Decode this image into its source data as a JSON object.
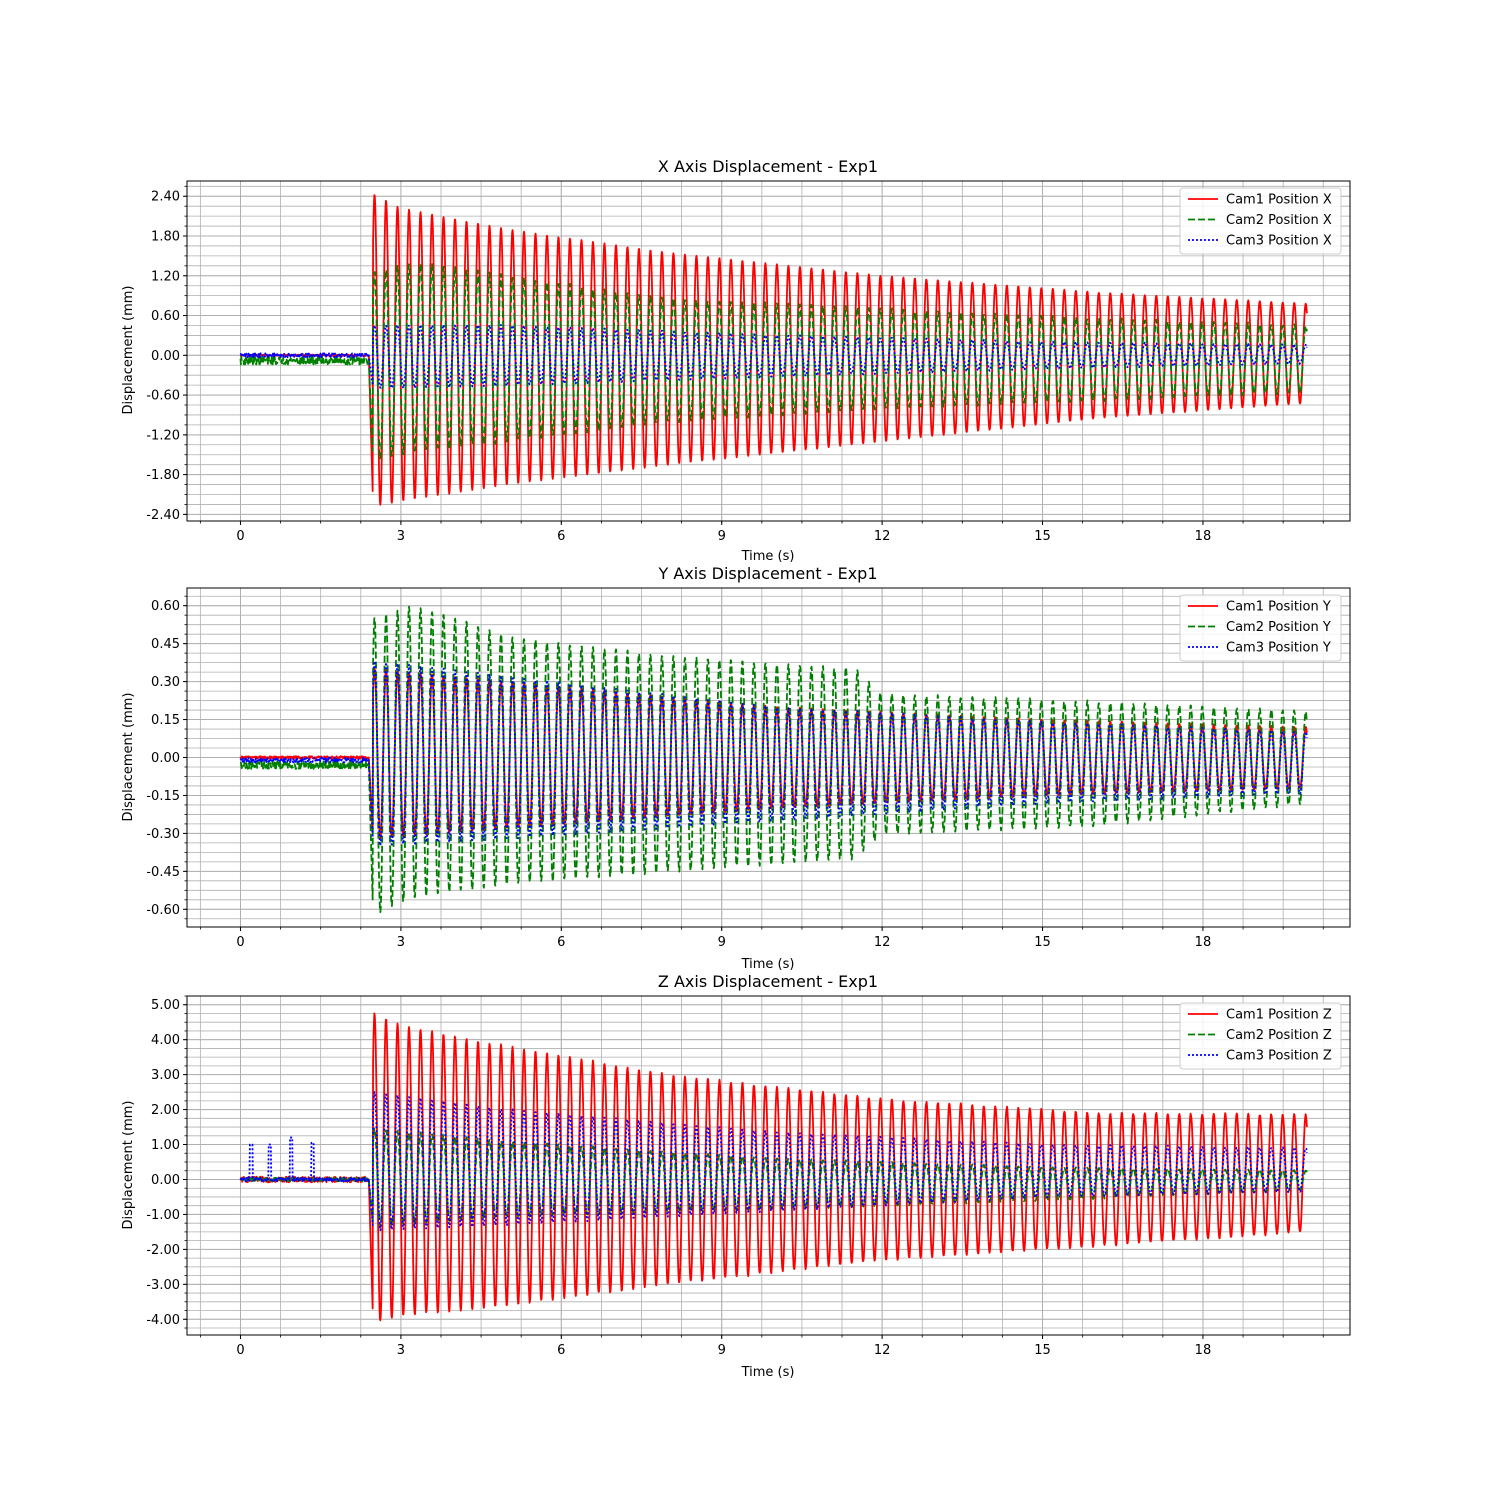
{
  "chart_data": [
    {
      "type": "line",
      "title": "X Axis Displacement - Exp1",
      "xlabel": "Time (s)",
      "ylabel": "Displacement (mm)",
      "xlim": [
        -1.0,
        20.75
      ],
      "ylim": [
        -2.5,
        2.63
      ],
      "xticks": [
        0,
        3,
        6,
        9,
        12,
        15,
        18
      ],
      "xtick_labels": [
        "0",
        "3",
        "6",
        "9",
        "12",
        "15",
        "18"
      ],
      "yticks": [
        -2.4,
        -1.8,
        -1.2,
        -0.6,
        0.0,
        0.6,
        1.2,
        1.8,
        2.4
      ],
      "ytick_labels": [
        "-2.40",
        "-1.80",
        "-1.20",
        "-0.60",
        "0.00",
        "0.60",
        "1.20",
        "1.80",
        "2.40"
      ],
      "grid": "major and minor",
      "legend_position": "top-right",
      "series": [
        {
          "name": "Cam1 Position X",
          "color": "#ff0000",
          "style": "solid",
          "onset": 2.4,
          "baseline": 0.0,
          "noise": 0.01,
          "period": 0.215,
          "upper": [
            [
              2.45,
              2.45
            ],
            [
              3.0,
              2.22
            ],
            [
              5.0,
              1.9
            ],
            [
              8.0,
              1.55
            ],
            [
              12.0,
              1.2
            ],
            [
              16.0,
              0.95
            ],
            [
              19.9,
              0.78
            ]
          ],
          "lower": [
            [
              2.45,
              -2.28
            ],
            [
              3.0,
              -2.2
            ],
            [
              5.0,
              -1.95
            ],
            [
              8.0,
              -1.65
            ],
            [
              12.0,
              -1.3
            ],
            [
              16.0,
              -0.95
            ],
            [
              19.9,
              -0.72
            ]
          ]
        },
        {
          "name": "Cam2 Position X",
          "color": "#008000",
          "style": "dashed",
          "onset": 2.4,
          "baseline": -0.08,
          "noise": 0.06,
          "period": 0.215,
          "upper": [
            [
              2.5,
              1.25
            ],
            [
              3.3,
              1.4
            ],
            [
              5.0,
              1.2
            ],
            [
              8.0,
              0.85
            ],
            [
              12.0,
              0.7
            ],
            [
              16.0,
              0.55
            ],
            [
              19.9,
              0.45
            ]
          ],
          "lower": [
            [
              2.5,
              -1.6
            ],
            [
              3.3,
              -1.45
            ],
            [
              5.0,
              -1.3
            ],
            [
              8.0,
              -1.0
            ],
            [
              12.0,
              -0.8
            ],
            [
              16.0,
              -0.68
            ],
            [
              19.9,
              -0.55
            ]
          ]
        },
        {
          "name": "Cam3 Position X",
          "color": "#0000ff",
          "style": "dotted",
          "onset": 2.4,
          "baseline": 0.0,
          "noise": 0.03,
          "period": 0.215,
          "upper": [
            [
              2.5,
              0.45
            ],
            [
              5.0,
              0.45
            ],
            [
              10.0,
              0.3
            ],
            [
              15.0,
              0.2
            ],
            [
              19.9,
              0.15
            ]
          ],
          "lower": [
            [
              2.5,
              -0.5
            ],
            [
              5.0,
              -0.45
            ],
            [
              10.0,
              -0.32
            ],
            [
              15.0,
              -0.2
            ],
            [
              19.9,
              -0.12
            ]
          ]
        }
      ]
    },
    {
      "type": "line",
      "title": "Y Axis Displacement - Exp1",
      "xlabel": "Time (s)",
      "ylabel": "Displacement (mm)",
      "xlim": [
        -1.0,
        20.75
      ],
      "ylim": [
        -0.67,
        0.67
      ],
      "xticks": [
        0,
        3,
        6,
        9,
        12,
        15,
        18
      ],
      "xtick_labels": [
        "0",
        "3",
        "6",
        "9",
        "12",
        "15",
        "18"
      ],
      "yticks": [
        -0.6,
        -0.45,
        -0.3,
        -0.15,
        0.0,
        0.15,
        0.3,
        0.45,
        0.6
      ],
      "ytick_labels": [
        "-0.60",
        "-0.45",
        "-0.30",
        "-0.15",
        "0.00",
        "0.15",
        "0.30",
        "0.45",
        "0.60"
      ],
      "grid": "major and minor",
      "legend_position": "top-right",
      "series": [
        {
          "name": "Cam1 Position Y",
          "color": "#ff0000",
          "style": "solid",
          "onset": 2.4,
          "baseline": 0.0,
          "noise": 0.005,
          "period": 0.215,
          "upper": [
            [
              2.5,
              0.35
            ],
            [
              5.0,
              0.3
            ],
            [
              10.0,
              0.2
            ],
            [
              15.0,
              0.15
            ],
            [
              19.9,
              0.12
            ]
          ],
          "lower": [
            [
              2.5,
              -0.32
            ],
            [
              5.0,
              -0.28
            ],
            [
              10.0,
              -0.2
            ],
            [
              15.0,
              -0.15
            ],
            [
              19.9,
              -0.12
            ]
          ]
        },
        {
          "name": "Cam2 Position Y",
          "color": "#008000",
          "style": "dashed",
          "onset": 2.4,
          "baseline": -0.03,
          "noise": 0.015,
          "period": 0.215,
          "upper": [
            [
              2.5,
              0.55
            ],
            [
              3.3,
              0.6
            ],
            [
              5.0,
              0.48
            ],
            [
              8.0,
              0.4
            ],
            [
              11.5,
              0.35
            ],
            [
              12.0,
              0.25
            ],
            [
              16.0,
              0.22
            ],
            [
              19.9,
              0.18
            ]
          ],
          "lower": [
            [
              2.5,
              -0.62
            ],
            [
              3.3,
              -0.55
            ],
            [
              5.0,
              -0.5
            ],
            [
              8.0,
              -0.45
            ],
            [
              11.5,
              -0.4
            ],
            [
              12.0,
              -0.3
            ],
            [
              16.0,
              -0.27
            ],
            [
              19.9,
              -0.18
            ]
          ]
        },
        {
          "name": "Cam3 Position Y",
          "color": "#0000ff",
          "style": "dotted",
          "onset": 2.4,
          "baseline": -0.01,
          "noise": 0.01,
          "period": 0.215,
          "upper": [
            [
              2.5,
              0.38
            ],
            [
              5.0,
              0.32
            ],
            [
              10.0,
              0.2
            ],
            [
              15.0,
              0.14
            ],
            [
              19.9,
              0.1
            ]
          ],
          "lower": [
            [
              2.5,
              -0.35
            ],
            [
              5.0,
              -0.32
            ],
            [
              10.0,
              -0.25
            ],
            [
              15.0,
              -0.18
            ],
            [
              19.9,
              -0.14
            ]
          ]
        }
      ]
    },
    {
      "type": "line",
      "title": "Z Axis Displacement - Exp1",
      "xlabel": "Time (s)",
      "ylabel": "Displacement (mm)",
      "xlim": [
        -1.0,
        20.75
      ],
      "ylim": [
        -4.45,
        5.25
      ],
      "xticks": [
        0,
        3,
        6,
        9,
        12,
        15,
        18
      ],
      "xtick_labels": [
        "0",
        "3",
        "6",
        "9",
        "12",
        "15",
        "18"
      ],
      "yticks": [
        -4,
        -3,
        -2,
        -1,
        0,
        1,
        2,
        3,
        4,
        5
      ],
      "ytick_labels": [
        "-4.00",
        "-3.00",
        "-2.00",
        "-1.00",
        "0.00",
        "1.00",
        "2.00",
        "3.00",
        "4.00",
        "5.00"
      ],
      "grid": "major and minor",
      "legend_position": "top-right",
      "series": [
        {
          "name": "Cam1 Position Z",
          "color": "#ff0000",
          "style": "solid",
          "onset": 2.4,
          "baseline": 0.0,
          "noise": 0.08,
          "period": 0.215,
          "upper": [
            [
              2.5,
              4.75
            ],
            [
              3.0,
              4.4
            ],
            [
              5.0,
              3.8
            ],
            [
              8.0,
              3.0
            ],
            [
              12.0,
              2.3
            ],
            [
              16.0,
              1.9
            ],
            [
              19.9,
              1.85
            ]
          ],
          "lower": [
            [
              2.5,
              -4.1
            ],
            [
              3.0,
              -3.9
            ],
            [
              5.0,
              -3.6
            ],
            [
              8.0,
              -3.0
            ],
            [
              12.0,
              -2.3
            ],
            [
              16.0,
              -1.9
            ],
            [
              19.9,
              -1.5
            ]
          ]
        },
        {
          "name": "Cam2 Position Z",
          "color": "#008000",
          "style": "dashed",
          "onset": 2.4,
          "baseline": 0.0,
          "noise": 0.05,
          "period": 0.215,
          "upper": [
            [
              2.5,
              1.45
            ],
            [
              5.0,
              1.1
            ],
            [
              10.0,
              0.6
            ],
            [
              15.0,
              0.35
            ],
            [
              19.9,
              0.25
            ]
          ],
          "lower": [
            [
              2.5,
              -1.35
            ],
            [
              5.0,
              -1.05
            ],
            [
              10.0,
              -0.85
            ],
            [
              15.0,
              -0.6
            ],
            [
              19.9,
              -0.3
            ]
          ]
        },
        {
          "name": "Cam3 Position Z",
          "color": "#0000ff",
          "style": "dotted",
          "onset": 2.4,
          "baseline": 0.0,
          "noise": 0.05,
          "period": 0.215,
          "spikes": [
            [
              0.2,
              1.0
            ],
            [
              0.55,
              1.0
            ],
            [
              0.95,
              1.2
            ],
            [
              1.35,
              1.05
            ]
          ],
          "upper": [
            [
              2.5,
              2.5
            ],
            [
              5.0,
              2.0
            ],
            [
              10.0,
              1.35
            ],
            [
              15.0,
              1.0
            ],
            [
              19.9,
              0.9
            ]
          ],
          "lower": [
            [
              2.5,
              -1.45
            ],
            [
              5.0,
              -1.3
            ],
            [
              10.0,
              -0.9
            ],
            [
              15.0,
              -0.5
            ],
            [
              19.9,
              -0.35
            ]
          ]
        }
      ]
    }
  ]
}
